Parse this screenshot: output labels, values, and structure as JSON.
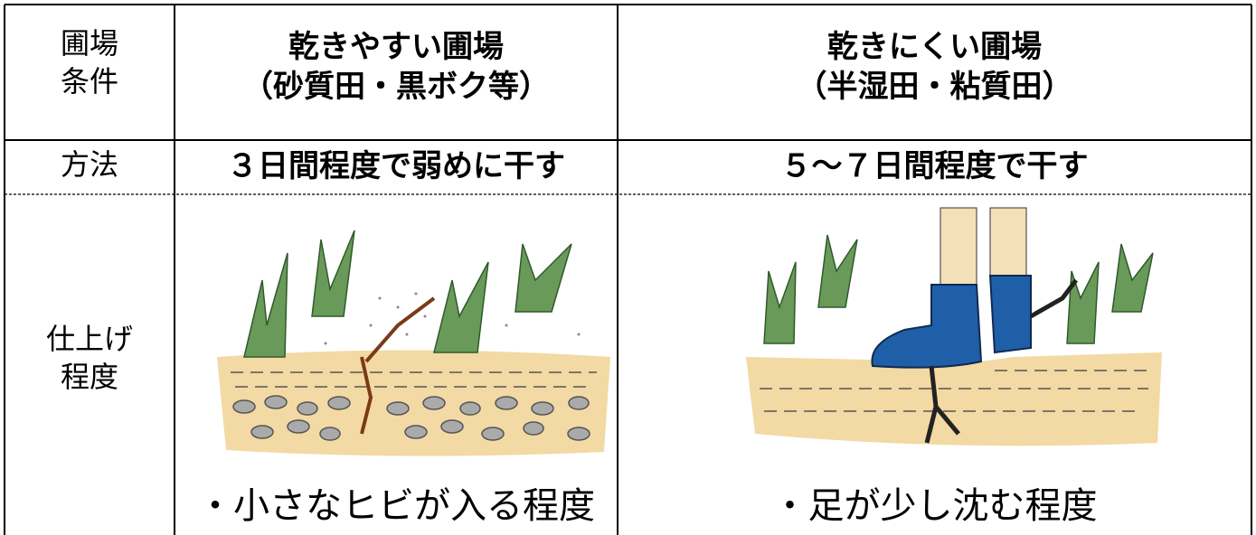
{
  "header": {
    "label": [
      "圃場",
      "条件"
    ],
    "columns": [
      {
        "title": "乾きやすい圃場",
        "subtitle": "（砂質田・黒ボク等）"
      },
      {
        "title": "乾きにくい圃場",
        "subtitle": "（半湿田・粘質田）"
      }
    ]
  },
  "rows": [
    {
      "label": [
        "方法"
      ],
      "cells": [
        "３日間程度で弱めに干す",
        "５～７日間程度で干す"
      ]
    },
    {
      "label": [
        "仕上げ",
        "程度"
      ],
      "cells": [
        "・小さなヒビが入る程度",
        "・足が少し沈む程度"
      ]
    }
  ]
}
